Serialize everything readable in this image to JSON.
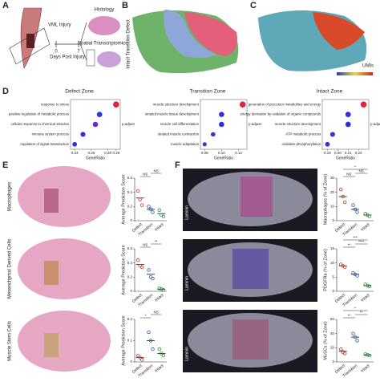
{
  "panels": {
    "letters": [
      "A",
      "B",
      "C",
      "D",
      "E",
      "F"
    ],
    "a": {
      "injury": "VML Injury",
      "day0": "0",
      "day7": "7",
      "days": "Days Post Injury",
      "histology": "Histology",
      "spatial": "Spatial Transcriptomics"
    },
    "b": {
      "zones": "Intact Transition Defect"
    },
    "c": {
      "umis": "UMIs"
    },
    "e": {
      "rows": [
        "Macrophages",
        "Mesenchymal Derived Cells",
        "Muscle Stem Cells"
      ]
    },
    "f": {
      "stain": "Laminin"
    }
  },
  "chart_data": [
    {
      "type": "dotplot",
      "title": "Defect Zone",
      "xlabel": "GeneRatio",
      "legend": "p.adjust",
      "categories": [
        "response to stress",
        "positive regulation of metabolic process",
        "cellular response to chemical stimulus",
        "immune system process",
        "regulation of signal transduction"
      ],
      "values": [
        0.29,
        0.27,
        0.265,
        0.25,
        0.24
      ],
      "sizes": [
        40,
        32,
        30,
        26,
        24
      ],
      "colors": [
        "#e0243c",
        "#2a3bd6",
        "#6a2ad0",
        "#3030d8",
        "#3438d8"
      ],
      "xlim": [
        0.235,
        0.295
      ],
      "xticks": [
        0.24,
        0.26,
        0.28,
        0.29
      ]
    },
    {
      "type": "dotplot",
      "title": "Transition Zone",
      "xlabel": "GeneRatio",
      "legend": "p.adjust",
      "categories": [
        "muscle structure development",
        "striated muscle tissue development",
        "muscle cell differentiation",
        "striated muscle contraction",
        "muscle adaptation"
      ],
      "values": [
        0.125,
        0.1,
        0.1,
        0.09,
        0.08
      ],
      "sizes": [
        40,
        30,
        30,
        22,
        18
      ],
      "colors": [
        "#e0243c",
        "#3030d8",
        "#3030d8",
        "#3438d8",
        "#3438d8"
      ],
      "xlim": [
        0.075,
        0.13
      ],
      "xticks": [
        0.08,
        {
          "value": 0.1,
          "label": "0.10"
        },
        0.12
      ]
    },
    {
      "type": "dotplot",
      "title": "Intact Zone",
      "xlabel": "GeneRatio",
      "legend": "p.adjust",
      "categories": [
        "generation of precursor metabolites and energy",
        "energy derivation by oxidation of organic compounds",
        "muscle structure development",
        "ATP metabolic process",
        "oxidative phosphorylation"
      ],
      "values": [
        0.225,
        0.21,
        0.21,
        0.195,
        0.19
      ],
      "sizes": [
        40,
        32,
        32,
        26,
        24
      ],
      "colors": [
        "#e0243c",
        "#3030d8",
        "#3030d8",
        "#3438d8",
        "#3438d8"
      ],
      "xlim": [
        0.185,
        0.23
      ],
      "xticks": [
        0.19,
        {
          "value": 0.2,
          "label": "0.20"
        },
        0.21,
        0.22
      ]
    },
    {
      "type": "dot",
      "ylabel": "Average Prediction Score",
      "categories": [
        "Defect",
        "Transition",
        "Intact"
      ],
      "colors": [
        "#c0392b",
        "#2c5aa0",
        "#2e8b3e"
      ],
      "means": [
        0.32,
        0.16,
        0.1
      ],
      "points": [
        [
          0.42,
          0.3,
          0.22
        ],
        [
          0.2,
          0.16,
          0.12
        ],
        [
          0.15,
          0.08,
          0.06
        ]
      ],
      "ylim": [
        0,
        0.6
      ],
      "yticks": [
        0,
        0.2,
        0.4,
        0.6
      ],
      "sig": [
        {
          "from": 0,
          "to": 1,
          "label": "NS"
        },
        {
          "from": 1,
          "to": 2,
          "label": "NS"
        }
      ]
    },
    {
      "type": "dot",
      "ylabel": "Average Prediction Score",
      "categories": [
        "Defect",
        "Transition",
        "Intact"
      ],
      "colors": [
        "#c0392b",
        "#2c5aa0",
        "#2e8b3e"
      ],
      "means": [
        0.38,
        0.24,
        0.03
      ],
      "points": [
        [
          0.44,
          0.36,
          0.34
        ],
        [
          0.3,
          0.2,
          0.18
        ],
        [
          0.04,
          0.03,
          0.02
        ]
      ],
      "ylim": [
        0,
        0.6
      ],
      "yticks": [
        0,
        0.2,
        0.4,
        0.6
      ],
      "sig": [
        {
          "from": 0,
          "to": 1,
          "label": "NS"
        },
        {
          "from": 1,
          "to": 2,
          "label": "**"
        }
      ]
    },
    {
      "type": "dot",
      "ylabel": "Average Prediction Score",
      "categories": [
        "Defect",
        "Transition",
        "Intact"
      ],
      "colors": [
        "#c0392b",
        "#2c5aa0",
        "#2e8b3e"
      ],
      "means": [
        0.02,
        0.1,
        0.04
      ],
      "points": [
        [
          0.03,
          0.02,
          0.01
        ],
        [
          0.14,
          0.1,
          0.06
        ],
        [
          0.06,
          0.04,
          0.03
        ]
      ],
      "ylim": [
        0,
        0.2
      ],
      "yticks": [
        0,
        0.1,
        0.2
      ],
      "sig": [
        {
          "from": 0,
          "to": 1,
          "label": "*"
        },
        {
          "from": 1,
          "to": 2,
          "label": "NS"
        }
      ]
    },
    {
      "type": "dot",
      "ylabel": "Macrophages (% of Zone)",
      "categories": [
        "Defect",
        "Transition",
        "Intact"
      ],
      "colors": [
        "#c0392b",
        "#2c5aa0",
        "#2e8b3e"
      ],
      "means": [
        17,
        8,
        4
      ],
      "points": [
        [
          22,
          17,
          13
        ],
        [
          11,
          8,
          6
        ],
        [
          5,
          4,
          3
        ]
      ],
      "ylim": [
        0,
        30
      ],
      "yticks": [
        0,
        10,
        20,
        30
      ],
      "sig": [
        {
          "from": 0,
          "to": 1,
          "label": "NS"
        },
        {
          "from": 1,
          "to": 2,
          "label": "NS"
        },
        {
          "from": 0,
          "to": 2,
          "label": "*"
        }
      ]
    },
    {
      "type": "dot",
      "ylabel": "PDGFRa (% of Zone)",
      "categories": [
        "Defect",
        "Transition",
        "Intact"
      ],
      "colors": [
        "#c0392b",
        "#2c5aa0",
        "#2e8b3e"
      ],
      "means": [
        9,
        6,
        2
      ],
      "points": [
        [
          9.5,
          9,
          8.5
        ],
        [
          6.5,
          6,
          5.5
        ],
        [
          2.5,
          2,
          1.8
        ]
      ],
      "ylim": [
        0,
        15
      ],
      "yticks": [
        0,
        5,
        10,
        15
      ],
      "sig": [
        {
          "from": 0,
          "to": 1,
          "label": "**"
        },
        {
          "from": 1,
          "to": 2,
          "label": "****"
        },
        {
          "from": 0,
          "to": 2,
          "label": "***"
        }
      ]
    },
    {
      "type": "dot",
      "ylabel": "MuSCs (% of Zone)",
      "categories": [
        "Defect",
        "Transition",
        "Intact"
      ],
      "colors": [
        "#c0392b",
        "#2c5aa0",
        "#2e8b3e"
      ],
      "means": [
        15,
        35,
        10
      ],
      "points": [
        [
          18,
          14,
          12
        ],
        [
          40,
          35,
          30
        ],
        [
          11,
          10,
          9
        ]
      ],
      "ylim": [
        0,
        60
      ],
      "yticks": [
        0,
        20,
        40,
        60
      ],
      "sig": [
        {
          "from": 0,
          "to": 1,
          "label": "**"
        },
        {
          "from": 1,
          "to": 2,
          "label": "**"
        },
        {
          "from": 0,
          "to": 2,
          "label": "*"
        }
      ]
    }
  ]
}
